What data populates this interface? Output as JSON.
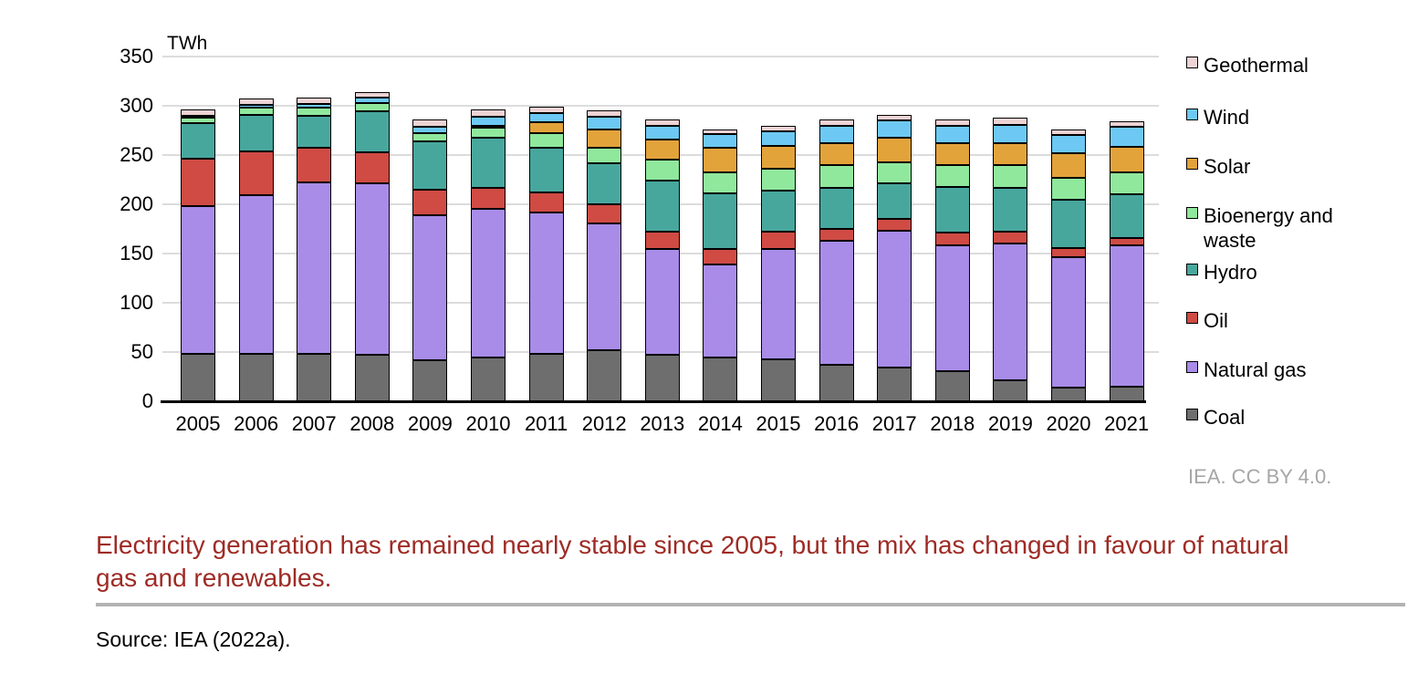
{
  "chart_data": {
    "type": "bar",
    "variant": "stacked",
    "unit": "TWh",
    "ylabel": "TWh",
    "xlabel": "",
    "ylim": [
      0,
      350
    ],
    "yticks": [
      0,
      50,
      100,
      150,
      200,
      250,
      300,
      350
    ],
    "grid": true,
    "legend_position": "right",
    "legend_order_top_to_bottom": [
      "Geothermal",
      "Wind",
      "Solar",
      "Bioenergy and waste",
      "Hydro",
      "Oil",
      "Natural gas",
      "Coal"
    ],
    "categories": [
      "2005",
      "2006",
      "2007",
      "2008",
      "2009",
      "2010",
      "2011",
      "2012",
      "2013",
      "2014",
      "2015",
      "2016",
      "2017",
      "2018",
      "2019",
      "2020",
      "2021"
    ],
    "series": [
      {
        "name": "Coal",
        "color": "#6e6e6e",
        "values": [
          48,
          48,
          48,
          47,
          42,
          44,
          48,
          52,
          47,
          44,
          43,
          37,
          34,
          31,
          21,
          14,
          15
        ]
      },
      {
        "name": "Natural gas",
        "color": "#a88ce8",
        "values": [
          150,
          161,
          174,
          174,
          147,
          151,
          144,
          129,
          108,
          95,
          112,
          126,
          139,
          127,
          139,
          132,
          143
        ]
      },
      {
        "name": "Oil",
        "color": "#cf4b44",
        "values": [
          48,
          45,
          35,
          32,
          26,
          22,
          20,
          19,
          17,
          16,
          17,
          12,
          12,
          13,
          12,
          10,
          8
        ]
      },
      {
        "name": "Hydro",
        "color": "#48a79d",
        "values": [
          36,
          37,
          33,
          41,
          49,
          51,
          45,
          42,
          52,
          56,
          42,
          42,
          36,
          47,
          45,
          49,
          44
        ]
      },
      {
        "name": "Bioenergy and waste",
        "color": "#90e89d",
        "values": [
          6,
          7,
          8,
          9,
          8,
          10,
          15,
          15,
          21,
          21,
          22,
          23,
          22,
          22,
          23,
          22,
          22
        ]
      },
      {
        "name": "Solar",
        "color": "#e3a33b",
        "values": [
          0,
          0,
          0,
          0,
          0,
          2,
          11,
          19,
          21,
          25,
          23,
          22,
          25,
          22,
          22,
          25,
          26
        ]
      },
      {
        "name": "Wind",
        "color": "#6dc9f3",
        "values": [
          2,
          3,
          4,
          5,
          7,
          9,
          10,
          13,
          14,
          14,
          15,
          18,
          17,
          18,
          19,
          18,
          21
        ]
      },
      {
        "name": "Geothermal",
        "color": "#eed3d4",
        "values": [
          6,
          6,
          6,
          6,
          7,
          7,
          6,
          6,
          6,
          5,
          6,
          6,
          6,
          6,
          7,
          6,
          5
        ]
      }
    ]
  },
  "attribution": "IEA. CC BY 4.0.",
  "caption": {
    "text": "Electricity generation has remained nearly stable since 2005, but the mix has changed in favour of natural gas and renewables.",
    "color": "#9e2b25"
  },
  "source": "Source: IEA (2022a)."
}
